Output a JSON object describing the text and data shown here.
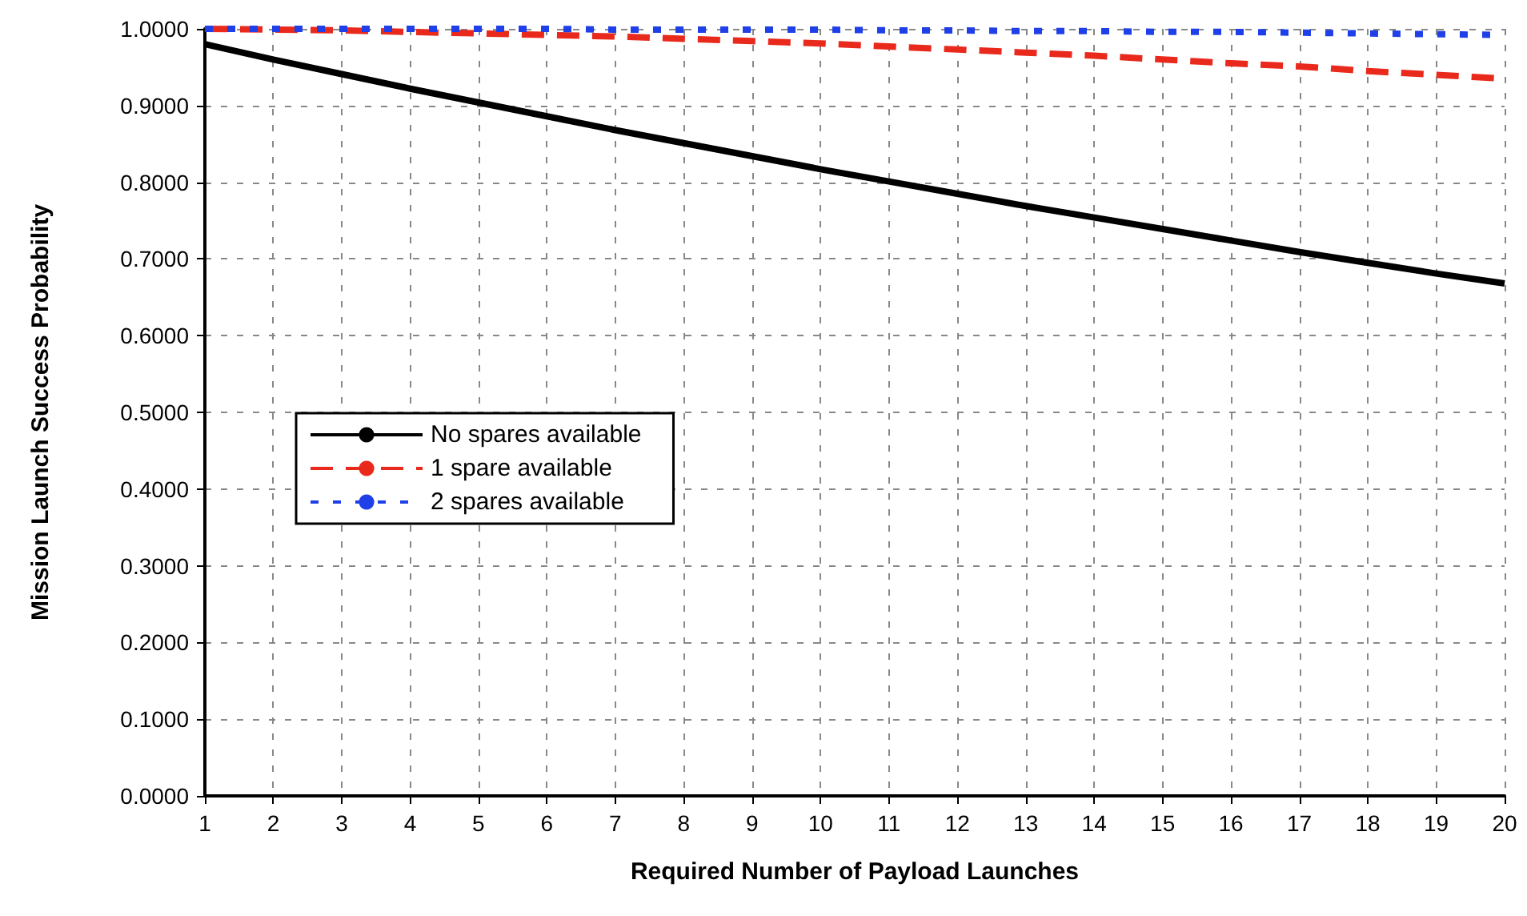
{
  "chart_data": {
    "type": "line",
    "xlabel": "Required Number of Payload Launches",
    "ylabel": "Mission Launch Success Probability",
    "x": [
      1,
      2,
      3,
      4,
      5,
      6,
      7,
      8,
      9,
      10,
      11,
      12,
      13,
      14,
      15,
      16,
      17,
      18,
      19,
      20
    ],
    "series": [
      {
        "name": "No spares available",
        "color": "#000000",
        "line_style": "solid",
        "values": [
          0.98,
          0.96,
          0.941,
          0.922,
          0.904,
          0.886,
          0.868,
          0.851,
          0.834,
          0.817,
          0.801,
          0.785,
          0.769,
          0.754,
          0.739,
          0.724,
          0.709,
          0.695,
          0.681,
          0.668
        ]
      },
      {
        "name": "1 spare available",
        "color": "#e8291c",
        "line_style": "dashed",
        "values": [
          1.0,
          0.999,
          0.998,
          0.996,
          0.994,
          0.992,
          0.99,
          0.987,
          0.984,
          0.981,
          0.977,
          0.973,
          0.969,
          0.965,
          0.96,
          0.955,
          0.951,
          0.945,
          0.94,
          0.935
        ]
      },
      {
        "name": "2 spares available",
        "color": "#1f3fe8",
        "line_style": "dotted",
        "values": [
          1.0,
          1.0,
          1.0,
          1.0,
          1.0,
          1.0,
          0.999,
          0.999,
          0.999,
          0.999,
          0.998,
          0.998,
          0.997,
          0.997,
          0.996,
          0.996,
          0.995,
          0.994,
          0.993,
          0.992
        ]
      }
    ],
    "xlim": [
      1,
      20
    ],
    "xticks": [
      1,
      2,
      3,
      4,
      5,
      6,
      7,
      8,
      9,
      10,
      11,
      12,
      13,
      14,
      15,
      16,
      17,
      18,
      19,
      20
    ],
    "ylim": [
      0,
      1
    ],
    "yticks": [
      {
        "value": 0,
        "label": "0.0000"
      },
      {
        "value": 0.1,
        "label": "0.1000"
      },
      {
        "value": 0.2,
        "label": "0.2000"
      },
      {
        "value": 0.3,
        "label": "0.3000"
      },
      {
        "value": 0.4,
        "label": "0.4000"
      },
      {
        "value": 0.5,
        "label": "0.5000"
      },
      {
        "value": 0.6,
        "label": "0.6000"
      },
      {
        "value": 0.7,
        "label": "0.7000"
      },
      {
        "value": 0.8,
        "label": "0.8000"
      },
      {
        "value": 0.9,
        "label": "0.9000"
      },
      {
        "value": 1,
        "label": "1.0000"
      }
    ],
    "grid": true,
    "legend": "left",
    "marker": "none"
  }
}
